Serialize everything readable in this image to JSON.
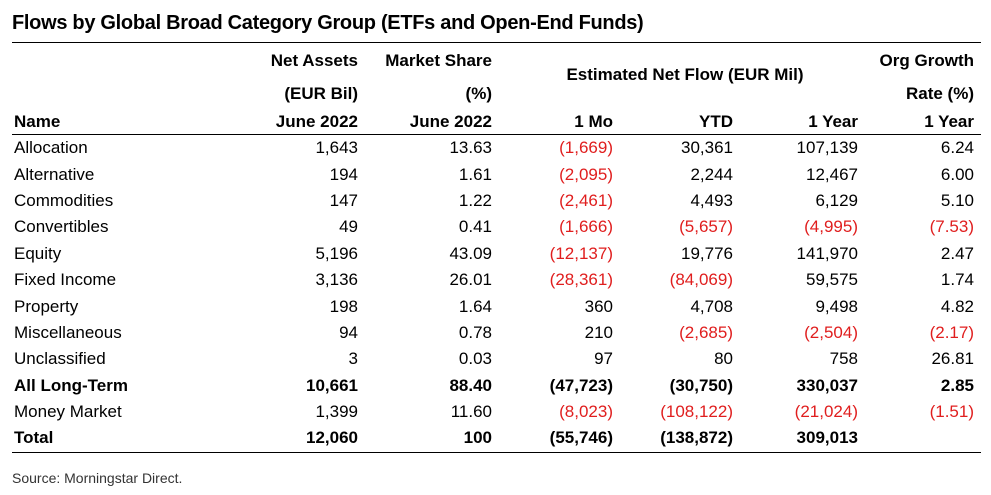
{
  "title": "Flows by Global Broad Category Group (ETFs and Open-End Funds)",
  "headers": {
    "name": "Name",
    "net_assets": [
      "Net Assets",
      "(EUR Bil)",
      "June 2022"
    ],
    "market_share": [
      "Market Share",
      "(%)",
      "June 2022"
    ],
    "net_flow_group": "Estimated Net Flow (EUR Mil)",
    "one_mo": "1 Mo",
    "ytd": "YTD",
    "one_year": "1 Year",
    "org_growth": [
      "Org Growth",
      "Rate (%)",
      "1 Year"
    ]
  },
  "rows": [
    {
      "name": "Allocation",
      "net_assets": "1,643",
      "market_share": "13.63",
      "one_mo": "(1,669)",
      "ytd": "30,361",
      "one_year": "107,139",
      "org_growth": "6.24",
      "bold": false
    },
    {
      "name": "Alternative",
      "net_assets": "194",
      "market_share": "1.61",
      "one_mo": "(2,095)",
      "ytd": "2,244",
      "one_year": "12,467",
      "org_growth": "6.00",
      "bold": false
    },
    {
      "name": "Commodities",
      "net_assets": "147",
      "market_share": "1.22",
      "one_mo": "(2,461)",
      "ytd": "4,493",
      "one_year": "6,129",
      "org_growth": "5.10",
      "bold": false
    },
    {
      "name": "Convertibles",
      "net_assets": "49",
      "market_share": "0.41",
      "one_mo": "(1,666)",
      "ytd": "(5,657)",
      "one_year": "(4,995)",
      "org_growth": "(7.53)",
      "bold": false
    },
    {
      "name": "Equity",
      "net_assets": "5,196",
      "market_share": "43.09",
      "one_mo": "(12,137)",
      "ytd": "19,776",
      "one_year": "141,970",
      "org_growth": "2.47",
      "bold": false
    },
    {
      "name": "Fixed Income",
      "net_assets": "3,136",
      "market_share": "26.01",
      "one_mo": "(28,361)",
      "ytd": "(84,069)",
      "one_year": "59,575",
      "org_growth": "1.74",
      "bold": false
    },
    {
      "name": "Property",
      "net_assets": "198",
      "market_share": "1.64",
      "one_mo": "360",
      "ytd": "4,708",
      "one_year": "9,498",
      "org_growth": "4.82",
      "bold": false
    },
    {
      "name": "Miscellaneous",
      "net_assets": "94",
      "market_share": "0.78",
      "one_mo": "210",
      "ytd": "(2,685)",
      "one_year": "(2,504)",
      "org_growth": "(2.17)",
      "bold": false
    },
    {
      "name": "Unclassified",
      "net_assets": "3",
      "market_share": "0.03",
      "one_mo": "97",
      "ytd": "80",
      "one_year": "758",
      "org_growth": "26.81",
      "bold": false
    },
    {
      "name": "All Long-Term",
      "net_assets": "10,661",
      "market_share": "88.40",
      "one_mo": "(47,723)",
      "ytd": "(30,750)",
      "one_year": "330,037",
      "org_growth": "2.85",
      "bold": true
    },
    {
      "name": "Money Market",
      "net_assets": "1,399",
      "market_share": "11.60",
      "one_mo": "(8,023)",
      "ytd": "(108,122)",
      "one_year": "(21,024)",
      "org_growth": "(1.51)",
      "bold": false
    },
    {
      "name": "Total",
      "net_assets": "12,060",
      "market_share": "100",
      "one_mo": "(55,746)",
      "ytd": "(138,872)",
      "one_year": "309,013",
      "org_growth": "",
      "bold": true
    }
  ],
  "colors": {
    "negative": "#e01e1e",
    "text": "#000000"
  },
  "source": "Source: Morningstar Direct."
}
